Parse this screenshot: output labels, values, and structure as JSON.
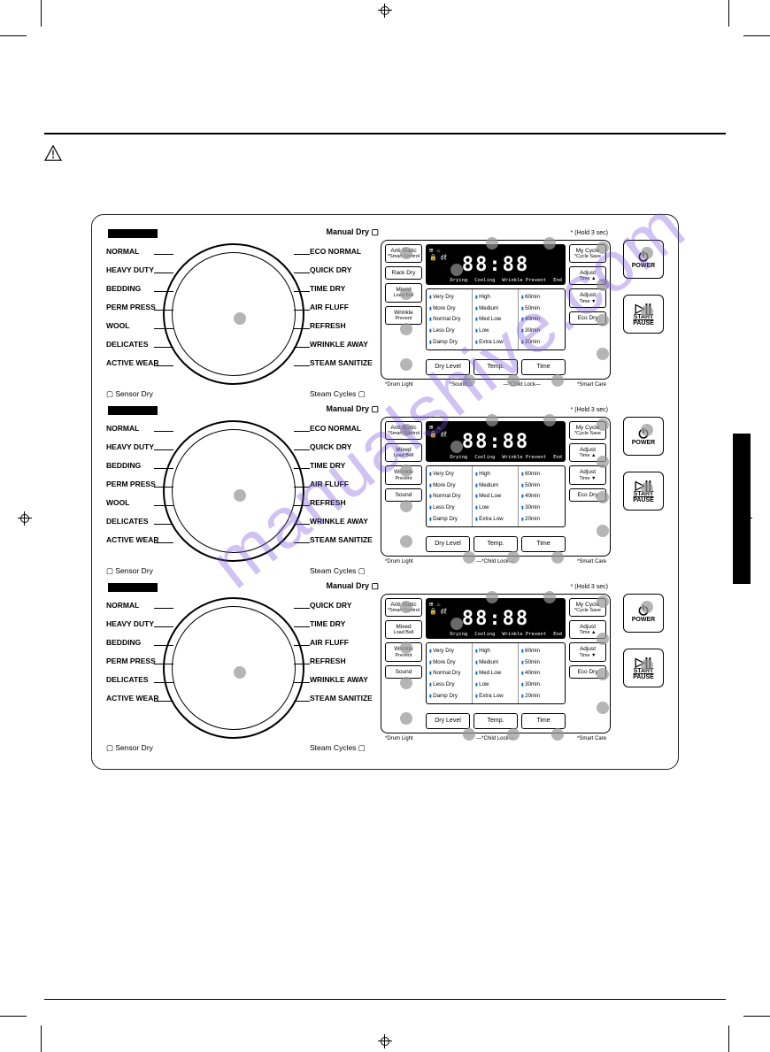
{
  "page": {
    "manual_dry_label": "Manual Dry",
    "sensor_dry_label": "Sensor Dry",
    "steam_cycles_label": "Steam Cycles",
    "hold_3_sec": "* (Hold 3 sec)"
  },
  "dial_variants": [
    {
      "left": [
        "NORMAL",
        "HEAVY DUTY",
        "BEDDING",
        "PERM PRESS",
        "WOOL",
        "DELICATES",
        "ACTIVE WEAR"
      ],
      "right": [
        "ECO NORMAL",
        "QUICK DRY",
        "TIME DRY",
        "AIR FLUFF",
        "REFRESH",
        "WRINKLE AWAY",
        "STEAM SANITIZE"
      ],
      "left_buttons": [
        "Anti Static\n*Smart Control",
        "Rack Dry",
        "Mixed\nLoad Bell",
        "Wrinkle\nPrevent"
      ],
      "right_buttons": [
        "My Cycle\n*Cycle Save",
        "Adjust\nTime ▲",
        "Adjust\nTime ▼",
        "Eco Dry"
      ]
    },
    {
      "left": [
        "NORMAL",
        "HEAVY DUTY",
        "BEDDING",
        "PERM PRESS",
        "WOOL",
        "DELICATES",
        "ACTIVE WEAR"
      ],
      "right": [
        "ECO NORMAL",
        "QUICK DRY",
        "TIME DRY",
        "AIR FLUFF",
        "REFRESH",
        "WRINKLE AWAY",
        "STEAM SANITIZE"
      ],
      "left_buttons": [
        "Anti Static\n*Smart Control",
        "Mixed\nLoad Bell",
        "Wrinkle\nPrevent",
        "Sound"
      ],
      "right_buttons": [
        "My Cycle\n*Cycle Save",
        "Adjust\nTime ▲",
        "Adjust\nTime ▼",
        "Eco Dry"
      ]
    },
    {
      "left": [
        "NORMAL",
        "HEAVY DUTY",
        "BEDDING",
        "PERM PRESS",
        "DELICATES",
        "ACTIVE WEAR"
      ],
      "right": [
        "QUICK DRY",
        "TIME DRY",
        "AIR FLUFF",
        "REFRESH",
        "WRINKLE AWAY",
        "STEAM SANITIZE"
      ],
      "left_buttons": [
        "Anti Static\n*Smart Control",
        "Mixed\nLoad Bell",
        "Wrinkle\nPrevent",
        "Sound"
      ],
      "right_buttons": [
        "My Cycle\n*Cycle Save",
        "Adjust\nTime ▲",
        "Adjust\nTime ▼",
        "Eco Dry"
      ]
    }
  ],
  "lcd": {
    "digits": "88:88",
    "bottom_labels": [
      "Drying",
      "Cooling",
      "Wrinkle\nPrevent",
      "End"
    ]
  },
  "grid": {
    "col1_header": "Dry Level",
    "col2_header": "Temp.",
    "col3_header": "Time",
    "col1": [
      "Very Dry",
      "More Dry",
      "Normal Dry",
      "Less Dry",
      "Damp Dry"
    ],
    "col2": [
      "High",
      "Medium",
      "Med Low",
      "Low",
      "Extra Low"
    ],
    "col3": [
      "60min",
      "50min",
      "40min",
      "30min",
      "20min"
    ]
  },
  "foot": {
    "a": "*Drum Light",
    "b": "*Sound",
    "c": "*Child Lock",
    "d": "*Smart Care",
    "b2": "*Child Lock"
  },
  "power": {
    "power": "POWER",
    "start": "START",
    "pause": "PAUSE"
  },
  "watermark": "manualshive.com",
  "colors": {
    "ink": "#000000",
    "callout": "rgba(150,150,150,0.7)",
    "watermark": "rgba(120,80,220,0.35)",
    "indicator": "#0066cc"
  }
}
